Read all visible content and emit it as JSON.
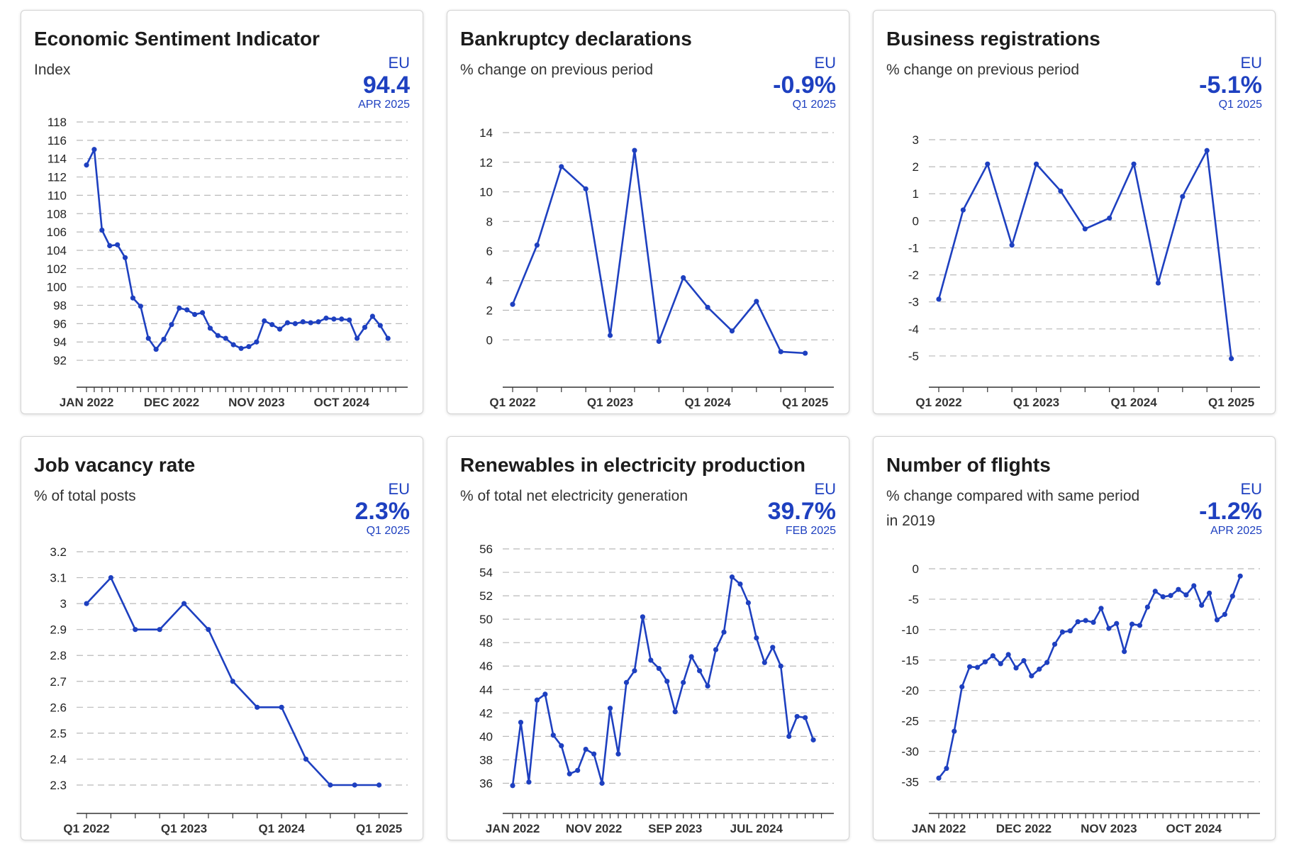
{
  "accent_color": "#1e40c0",
  "grid_color": "#b9b9b9",
  "panels": [
    {
      "title": "Economic Sentiment Indicator",
      "subtitle": "Index",
      "region": "EU",
      "value": "94.4",
      "period": "APR 2025",
      "chart_data": {
        "type": "line",
        "ylim": [
          91,
          118
        ],
        "yticks": [
          "92",
          "94",
          "96",
          "98",
          "100",
          "102",
          "104",
          "106",
          "108",
          "110",
          "112",
          "114",
          "116",
          "118"
        ],
        "yticks_num": [
          92,
          94,
          96,
          98,
          100,
          102,
          104,
          106,
          108,
          110,
          112,
          114,
          116,
          118
        ],
        "xticks": [
          "JAN 2022",
          "DEC 2022",
          "NOV 2023",
          "OCT 2024"
        ],
        "xticks_at": [
          0,
          11,
          22,
          33
        ],
        "tick_count": 41,
        "x": [
          0,
          1,
          2,
          3,
          4,
          5,
          6,
          7,
          8,
          9,
          10,
          11,
          12,
          13,
          14,
          15,
          16,
          17,
          18,
          19,
          20,
          21,
          22,
          23,
          24,
          25,
          26,
          27,
          28,
          29,
          30,
          31,
          32,
          33,
          34,
          35,
          36,
          37,
          38,
          39
        ],
        "values": [
          113.3,
          115,
          106.2,
          104.5,
          104.6,
          103.2,
          98.8,
          97.9,
          94.4,
          93.2,
          94.3,
          95.9,
          97.7,
          97.5,
          97,
          97.2,
          95.5,
          94.7,
          94.4,
          93.7,
          93.3,
          93.5,
          94,
          96.3,
          95.9,
          95.4,
          96.1,
          96,
          96.2,
          96.1,
          96.2,
          96.6,
          96.5,
          96.5,
          96.4,
          94.4,
          95.6,
          96.8,
          95.8,
          94.4
        ],
        "grid": true
      }
    },
    {
      "title": "Bankruptcy declarations",
      "subtitle": "% change on previous period",
      "region": "EU",
      "value": "-0.9%",
      "period": "Q1 2025",
      "chart_data": {
        "type": "line",
        "ylim": [
          -2,
          14
        ],
        "yticks": [
          "0",
          "2",
          "4",
          "6",
          "8",
          "10",
          "12",
          "14"
        ],
        "yticks_num": [
          0,
          2,
          4,
          6,
          8,
          10,
          12,
          14
        ],
        "xticks": [
          "Q1 2022",
          "Q1 2023",
          "Q1 2024",
          "Q1 2025"
        ],
        "xticks_at": [
          0,
          4,
          8,
          12
        ],
        "tick_count": 13,
        "x": [
          0,
          1,
          2,
          3,
          4,
          5,
          6,
          7,
          8,
          9,
          10,
          11,
          12
        ],
        "values": [
          2.4,
          6.4,
          11.7,
          10.2,
          0.3,
          12.8,
          -0.1,
          4.2,
          2.2,
          0.6,
          2.6,
          -0.8,
          -0.9
        ],
        "grid": true
      }
    },
    {
      "title": "Business registrations",
      "subtitle": "% change on previous period",
      "region": "EU",
      "value": "-5.1%",
      "period": "Q1 2025",
      "chart_data": {
        "type": "line",
        "ylim": [
          -5.5,
          3
        ],
        "yticks": [
          "-5",
          "-4",
          "-3",
          "-2",
          "-1",
          "0",
          "1",
          "2",
          "3"
        ],
        "yticks_num": [
          -5,
          -4,
          -3,
          -2,
          -1,
          0,
          1,
          2,
          3
        ],
        "xticks": [
          "Q1 2022",
          "Q1 2023",
          "Q1 2024",
          "Q1 2025"
        ],
        "xticks_at": [
          0,
          4,
          8,
          12
        ],
        "tick_count": 13,
        "x": [
          0,
          1,
          2,
          3,
          4,
          5,
          6,
          7,
          8,
          9,
          10,
          11,
          12
        ],
        "values": [
          -2.9,
          0.4,
          2.1,
          -0.9,
          2.1,
          1.1,
          -0.3,
          0.1,
          2.1,
          -2.3,
          0.9,
          2.6,
          -5.1
        ],
        "grid": true
      }
    },
    {
      "title": "Job vacancy rate",
      "subtitle": "% of total posts",
      "region": "EU",
      "value": "2.3%",
      "period": "Q1 2025",
      "chart_data": {
        "type": "line",
        "ylim": [
          2.3,
          3.2
        ],
        "yticks": [
          "2.3",
          "2.4",
          "2.5",
          "2.6",
          "2.7",
          "2.8",
          "2.9",
          "3",
          "3.1",
          "3.2"
        ],
        "yticks_num": [
          2.3,
          2.4,
          2.5,
          2.6,
          2.7,
          2.8,
          2.9,
          3.0,
          3.1,
          3.2
        ],
        "xticks": [
          "Q1 2022",
          "Q1 2023",
          "Q1 2024",
          "Q1 2025"
        ],
        "xticks_at": [
          0,
          4,
          8,
          12
        ],
        "tick_count": 13,
        "x": [
          0,
          1,
          2,
          3,
          4,
          5,
          6,
          7,
          8,
          9,
          10,
          11,
          12
        ],
        "values": [
          3.0,
          3.1,
          2.9,
          2.9,
          3.0,
          2.9,
          2.7,
          2.6,
          2.6,
          2.4,
          2.3,
          2.3,
          2.3
        ],
        "grid": true
      }
    },
    {
      "title": "Renewables in electricity production",
      "subtitle": "% of total net electricity generation",
      "region": "EU",
      "value": "39.7%",
      "period": "FEB 2025",
      "chart_data": {
        "type": "line",
        "ylim": [
          35,
          56
        ],
        "yticks": [
          "36",
          "38",
          "40",
          "42",
          "44",
          "46",
          "48",
          "50",
          "52",
          "54",
          "56"
        ],
        "yticks_num": [
          36,
          38,
          40,
          42,
          44,
          46,
          48,
          50,
          52,
          54,
          56
        ],
        "xticks": [
          "JAN 2022",
          "NOV 2022",
          "SEP 2023",
          "JUL 2024"
        ],
        "xticks_at": [
          0,
          10,
          20,
          30
        ],
        "tick_count": 39,
        "x": [
          0,
          1,
          2,
          3,
          4,
          5,
          6,
          7,
          8,
          9,
          10,
          11,
          12,
          13,
          14,
          15,
          16,
          17,
          18,
          19,
          20,
          21,
          22,
          23,
          24,
          25,
          26,
          27,
          28,
          29,
          30,
          31,
          32,
          33,
          34,
          35,
          36,
          37
        ],
        "values": [
          35.8,
          41.2,
          36.1,
          43.1,
          43.6,
          40.1,
          39.2,
          36.8,
          37.1,
          38.9,
          38.5,
          36,
          42.4,
          38.5,
          44.6,
          45.6,
          50.2,
          46.5,
          45.8,
          44.7,
          42.1,
          44.6,
          46.8,
          45.6,
          44.3,
          47.4,
          48.9,
          53.6,
          53,
          51.4,
          48.4,
          46.3,
          47.6,
          46,
          40,
          41.7,
          41.6,
          39.7
        ],
        "grid": true
      }
    },
    {
      "title": "Number of flights",
      "subtitle": "% change compared with same period in 2019",
      "region": "EU",
      "value": "-1.2%",
      "period": "APR 2025",
      "chart_data": {
        "type": "line",
        "ylim": [
          -36,
          0
        ],
        "yticks": [
          "-35",
          "-30",
          "-25",
          "-20",
          "-15",
          "-10",
          "-5",
          "0"
        ],
        "yticks_num": [
          -35,
          -30,
          -25,
          -20,
          -15,
          -10,
          -5,
          0
        ],
        "xticks": [
          "JAN 2022",
          "DEC 2022",
          "NOV 2023",
          "OCT 2024"
        ],
        "xticks_at": [
          0,
          11,
          22,
          33
        ],
        "tick_count": 41,
        "x": [
          0,
          1,
          2,
          3,
          4,
          5,
          6,
          7,
          8,
          9,
          10,
          11,
          12,
          13,
          14,
          15,
          16,
          17,
          18,
          19,
          20,
          21,
          22,
          23,
          24,
          25,
          26,
          27,
          28,
          29,
          30,
          31,
          32,
          33,
          34,
          35,
          36,
          37,
          38,
          39
        ],
        "values": [
          -34.4,
          -32.8,
          -26.7,
          -19.4,
          -16.1,
          -16.2,
          -15.3,
          -14.3,
          -15.6,
          -14.1,
          -16.3,
          -15.1,
          -17.6,
          -16.5,
          -15.4,
          -12.4,
          -10.4,
          -10.2,
          -8.7,
          -8.5,
          -8.8,
          -6.5,
          -9.8,
          -9,
          -13.6,
          -9.1,
          -9.3,
          -6.3,
          -3.7,
          -4.6,
          -4.4,
          -3.4,
          -4.3,
          -2.8,
          -6,
          -4,
          -8.4,
          -7.5,
          -4.5,
          -1.2
        ],
        "grid": true
      }
    }
  ]
}
